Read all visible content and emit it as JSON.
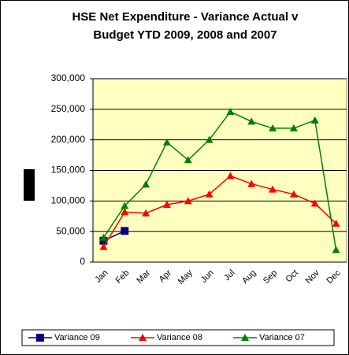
{
  "chart_data": {
    "type": "line",
    "title": [
      "HSE Net Expenditure - Variance Actual v",
      "Budget YTD 2009, 2008 and 2007"
    ],
    "categories": [
      "Jan",
      "Feb",
      "Mar",
      "Apr",
      "May",
      "Jun",
      "Jul",
      "Aug",
      "Sep",
      "Oct",
      "Nov",
      "Dec"
    ],
    "series": [
      {
        "name": "Variance 09",
        "color": "#000080",
        "marker": "square",
        "values": [
          35000,
          51000,
          null,
          null,
          null,
          null,
          null,
          null,
          null,
          null,
          null,
          null
        ]
      },
      {
        "name": "Variance 08",
        "color": "#ff0000",
        "marker": "triangle",
        "values": [
          25000,
          82000,
          80000,
          94000,
          100000,
          111000,
          141000,
          128000,
          119000,
          111000,
          96000,
          63000
        ]
      },
      {
        "name": "Variance 07",
        "color": "#008000",
        "marker": "triangle",
        "values": [
          40000,
          92000,
          127000,
          196000,
          167000,
          200000,
          246000,
          230000,
          219000,
          219000,
          232000,
          20000
        ]
      }
    ],
    "ylim": [
      0,
      300000
    ],
    "yticks": [
      0,
      {
        "value": 50000,
        "label": "50,000"
      },
      {
        "value": 100000,
        "label": "100,000"
      },
      {
        "value": 150000,
        "label": "150,000"
      },
      {
        "value": 200000,
        "label": "200,000"
      },
      {
        "value": 250000,
        "label": "250,000"
      },
      {
        "value": 300000,
        "label": "300,000"
      }
    ],
    "grid": true,
    "legend": "bottom"
  }
}
